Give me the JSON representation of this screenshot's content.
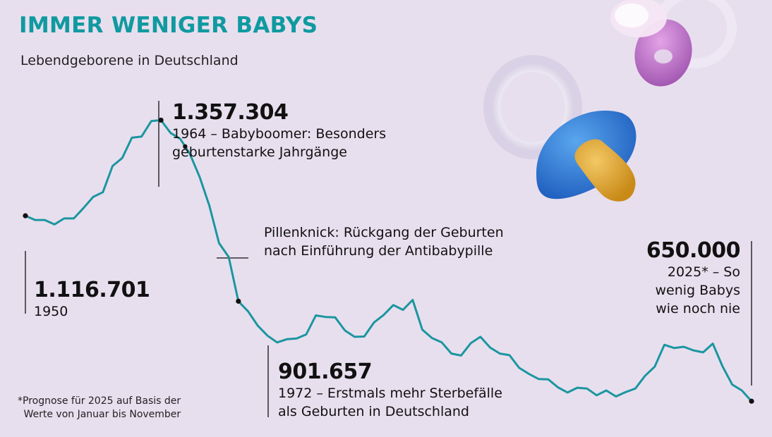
{
  "header": {
    "title": "IMMER WENIGER BABYS",
    "subtitle": "Lebendgeborene in Deutschland"
  },
  "annotations": {
    "start": {
      "value": "1.116.701",
      "label": "1950"
    },
    "peak": {
      "value": "1.357.304",
      "line1": "1964 – Babyboomer: Besonders",
      "line2": "geburtenstarke Jahrgänge"
    },
    "pillenknick": {
      "line1": "Pillenknick: Rückgang der Geburten",
      "line2": "nach Einführung der Antibabypille"
    },
    "low1972": {
      "value": "901.657",
      "line1": "1972 – Erstmals mehr Sterbefälle",
      "line2": "als Geburten in Deutschland"
    },
    "end": {
      "value": "650.000",
      "line1": "2025* – So",
      "line2": "wenig Babys",
      "line3": "wie noch nie"
    }
  },
  "footnote": {
    "line1": "*Prognose für 2025 auf Basis der",
    "line2": "Werte von Januar bis November"
  },
  "colors": {
    "line": "#1b96a0",
    "title": "#0f9aa0",
    "background": "#e8dfee"
  },
  "decoration": {
    "icons": [
      "pacifier-icon-white-blue",
      "pacifier-icon-pink"
    ]
  },
  "chart_data": {
    "type": "line",
    "x": [
      1950,
      1951,
      1952,
      1953,
      1954,
      1955,
      1956,
      1957,
      1958,
      1959,
      1960,
      1961,
      1962,
      1963,
      1964,
      1965,
      1966,
      1967,
      1968,
      1969,
      1970,
      1971,
      1972,
      1973,
      1974,
      1975,
      1976,
      1977,
      1978,
      1979,
      1980,
      1981,
      1982,
      1983,
      1984,
      1985,
      1986,
      1987,
      1988,
      1989,
      1990,
      1991,
      1992,
      1993,
      1994,
      1995,
      1996,
      1997,
      1998,
      1999,
      2000,
      2001,
      2002,
      2003,
      2004,
      2005,
      2006,
      2007,
      2008,
      2009,
      2010,
      2011,
      2012,
      2013,
      2014,
      2015,
      2016,
      2017,
      2018,
      2019,
      2020,
      2021,
      2022,
      2023,
      2024,
      2025
    ],
    "values": [
      1116701,
      1106000,
      1106000,
      1095000,
      1110000,
      1110000,
      1136000,
      1164000,
      1176000,
      1242000,
      1262000,
      1313000,
      1316000,
      1355000,
      1357304,
      1325000,
      1310000,
      1272000,
      1214000,
      1142000,
      1048000,
      1013000,
      901657,
      876000,
      840000,
      815000,
      798000,
      806000,
      808000,
      818000,
      866000,
      862000,
      861000,
      828000,
      812000,
      813000,
      848000,
      867000,
      892000,
      880000,
      905000,
      830000,
      809000,
      798000,
      770000,
      765000,
      796000,
      812000,
      785000,
      770000,
      766000,
      734000,
      719000,
      706000,
      705000,
      685000,
      672000,
      684000,
      682000,
      665000,
      677000,
      662000,
      673000,
      682000,
      714000,
      737000,
      792000,
      784000,
      787000,
      778000,
      773000,
      795000,
      738000,
      692000,
      677000,
      650000
    ],
    "ylim": [
      560000,
      1500000
    ],
    "xlim": [
      1950,
      2025
    ],
    "grid": false,
    "legend": "none",
    "highlight_points": [
      1950,
      1964,
      1972,
      2025
    ]
  }
}
